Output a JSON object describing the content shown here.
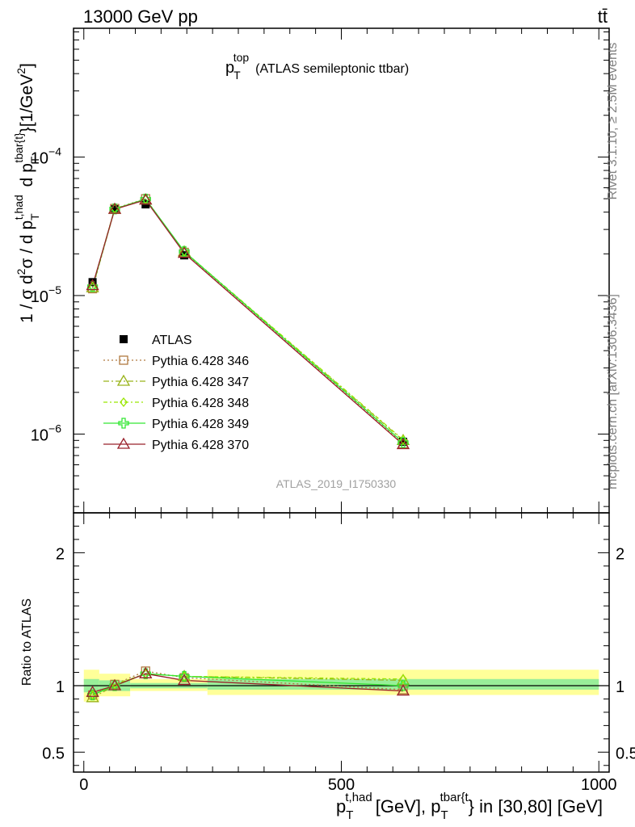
{
  "header": {
    "left": "13000 GeV pp",
    "right": "tt̄"
  },
  "side_labels": {
    "rivet": "Rivet 3.1.10, ≥ 2.5M events",
    "mcplots": "mcplots.cern.ch [arXiv:1306.3436]"
  },
  "watermark": "ATLAS_2019_I1750330",
  "chart_data": [
    {
      "type": "line",
      "title": {
        "p": "p",
        "sub": "T",
        "sup": "top",
        "rest": "(ATLAS semileptonic ttbar)"
      },
      "ylabel": "1 / σ d²σ / d p_T^{t,had} d p_T^{tbar{t}} [1/GeV²]",
      "yscale": "log",
      "xlim": [
        -20,
        1020
      ],
      "ylim": [
        2.7e-07,
        0.00085
      ],
      "y_ticks": [
        {
          "v": 1e-06,
          "base": "10",
          "exp": "−6"
        },
        {
          "v": 1e-05,
          "base": "10",
          "exp": "−5"
        },
        {
          "v": 0.0001,
          "base": "10",
          "exp": "−4"
        }
      ],
      "legend_position": "center-left",
      "x": [
        17,
        60,
        120,
        195,
        620
      ],
      "series": [
        {
          "name": "ATLAS",
          "color": "#000000",
          "marker": "square-filled",
          "dash": "none",
          "values": [
            1.25e-05,
            4.2e-05,
            4.55e-05,
            1.95e-05,
            8.8e-07
          ]
        },
        {
          "name": "Pythia 6.428 346",
          "color": "#b07a40",
          "marker": "square-open",
          "dash": "2,3",
          "values": [
            1.12e-05,
            4.25e-05,
            5e-05,
            2.05e-05,
            8.5e-07
          ]
        },
        {
          "name": "Pythia 6.428 347",
          "color": "#99b31a",
          "marker": "triangle-open",
          "dash": "7,3,2,3",
          "values": [
            1.14e-05,
            4.2e-05,
            4.9e-05,
            2.07e-05,
            9e-07
          ]
        },
        {
          "name": "Pythia 6.428 348",
          "color": "#99e600",
          "marker": "diamond-open",
          "dash": "5,3,2,3",
          "values": [
            1.16e-05,
            4.25e-05,
            4.95e-05,
            2.08e-05,
            9.1e-07
          ]
        },
        {
          "name": "Pythia 6.428 349",
          "color": "#33e633",
          "marker": "cross-open",
          "dash": "none",
          "values": [
            1.16e-05,
            4.22e-05,
            4.97e-05,
            2.08e-05,
            8.7e-07
          ]
        },
        {
          "name": "Pythia 6.428 370",
          "color": "#99202a",
          "marker": "triangle-open",
          "dash": "none",
          "values": [
            1.18e-05,
            4.2e-05,
            4.9e-05,
            2.02e-05,
            8.4e-07
          ]
        }
      ]
    },
    {
      "type": "line",
      "ylabel": "Ratio to ATLAS",
      "yscale": "linear",
      "xlim": [
        -20,
        1020
      ],
      "ylim": [
        0.35,
        2.3
      ],
      "y_ticks": [
        {
          "v": 0.5,
          "label": "0.5"
        },
        {
          "v": 1,
          "label": "1"
        },
        {
          "v": 2,
          "label": "2"
        }
      ],
      "x_ticks": [
        {
          "v": 0,
          "label": "0"
        },
        {
          "v": 500,
          "label": "500"
        },
        {
          "v": 1000,
          "label": "1000"
        }
      ],
      "xlabel": {
        "p1": "p",
        "sub1": "T",
        "sup1": "t,had",
        "mid": "[GeV], p",
        "sub2": "T",
        "sup2": "tbar{t",
        "rest": "} in [30,80] [GeV]"
      },
      "bands": [
        {
          "x0": 0,
          "x1": 30,
          "yellow": [
            0.88,
            1.12
          ],
          "green": [
            0.95,
            1.05
          ]
        },
        {
          "x0": 30,
          "x1": 90,
          "yellow": [
            0.92,
            1.09
          ],
          "green": [
            0.96,
            1.04
          ]
        },
        {
          "x0": 90,
          "x1": 240,
          "yellow": [
            0.96,
            1.05
          ],
          "green": [
            0.98,
            1.02
          ]
        },
        {
          "x0": 240,
          "x1": 1000,
          "yellow": [
            0.93,
            1.12
          ],
          "green": [
            0.97,
            1.05
          ]
        }
      ],
      "x": [
        17,
        60,
        120,
        195,
        620
      ],
      "series": [
        {
          "name": "Pythia 6.428 346",
          "values": [
            0.93,
            1.01,
            1.11,
            1.06,
            0.97
          ]
        },
        {
          "name": "Pythia 6.428 347",
          "values": [
            0.91,
            1.0,
            1.09,
            1.07,
            1.04
          ]
        },
        {
          "name": "Pythia 6.428 348",
          "values": [
            0.93,
            1.01,
            1.09,
            1.07,
            1.05
          ]
        },
        {
          "name": "Pythia 6.428 349",
          "values": [
            0.93,
            1.0,
            1.09,
            1.07,
            1.0
          ]
        },
        {
          "name": "Pythia 6.428 370",
          "values": [
            0.95,
            1.0,
            1.09,
            1.04,
            0.96
          ]
        }
      ]
    }
  ]
}
